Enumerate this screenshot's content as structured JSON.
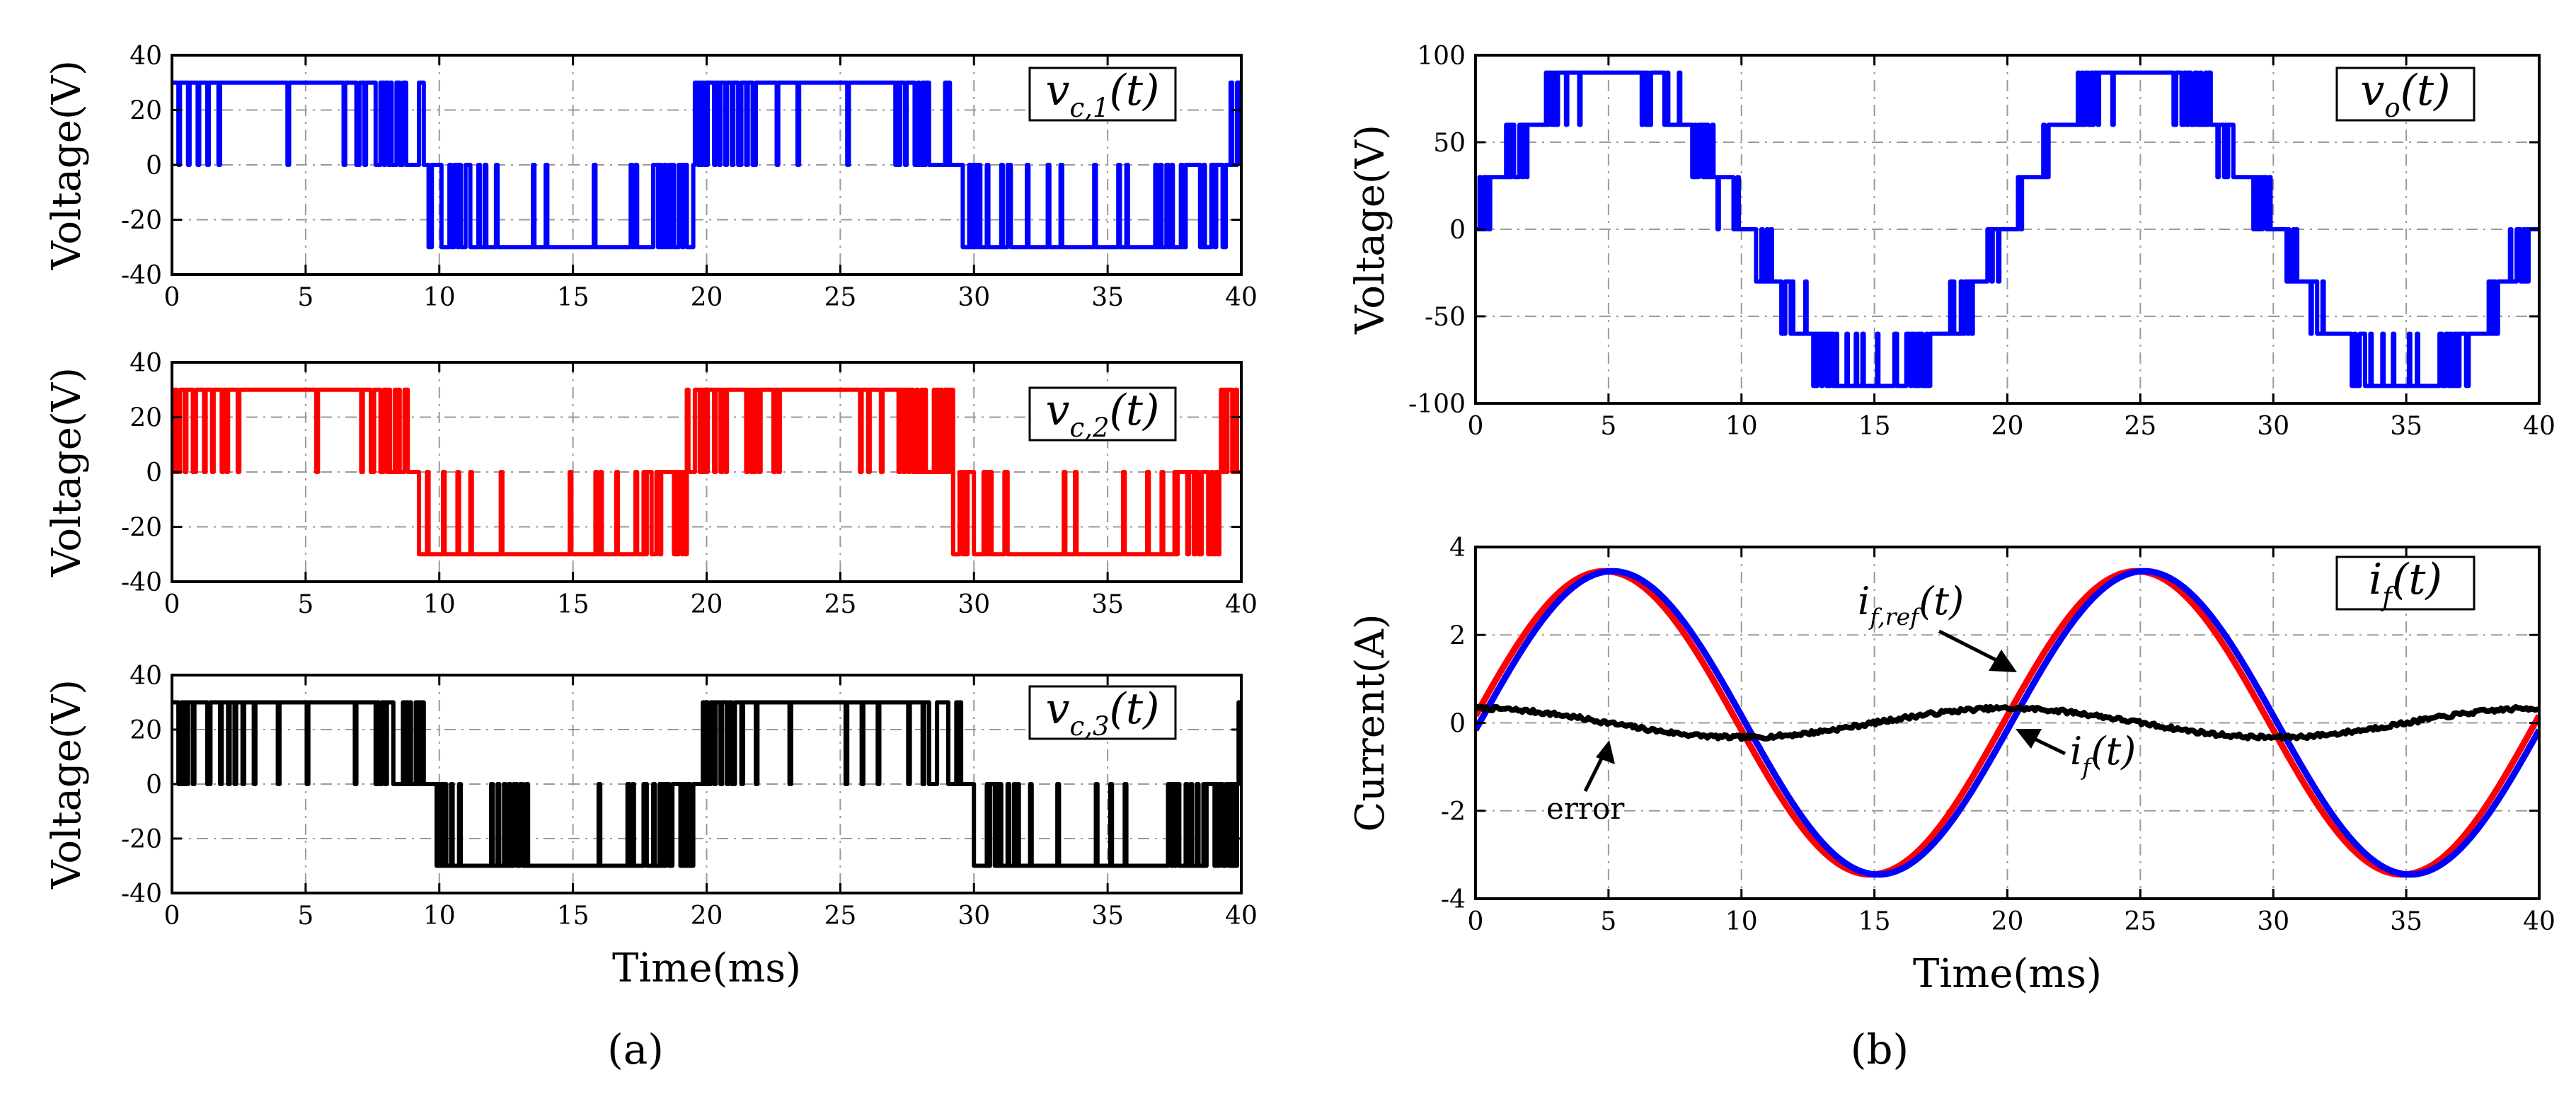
{
  "chart_data": [
    {
      "id": "p1",
      "type": "line",
      "panel": "a",
      "legend": "v_{c,1}(t)",
      "ylabel": "Voltage(V)",
      "xlabel": "",
      "xlim": [
        0,
        40
      ],
      "ylim": [
        -40,
        40
      ],
      "xticks": [
        0,
        5,
        10,
        15,
        20,
        25,
        30,
        35,
        40
      ],
      "yticks": [
        40,
        20,
        0,
        -20,
        -40
      ],
      "grid": true,
      "series": [
        {
          "color": "#0000FF",
          "kind": "pwm2",
          "amplitude": 30,
          "period_ms": 20,
          "phase_ms": 0,
          "offset_ms": 0.5
        }
      ]
    },
    {
      "id": "p2",
      "type": "line",
      "panel": "a",
      "legend": "v_{c,2}(t)",
      "ylabel": "Voltage(V)",
      "xlabel": "",
      "xlim": [
        0,
        40
      ],
      "ylim": [
        -40,
        40
      ],
      "xticks": [
        0,
        5,
        10,
        15,
        20,
        25,
        30,
        35,
        40
      ],
      "yticks": [
        40,
        20,
        0,
        -20,
        -40
      ],
      "grid": true,
      "series": [
        {
          "color": "#FF0000",
          "kind": "pwm2",
          "amplitude": 30,
          "period_ms": 20,
          "phase_ms": 0,
          "offset_ms": 0.8
        }
      ]
    },
    {
      "id": "p3",
      "type": "line",
      "panel": "a",
      "legend": "v_{c,3}(t)",
      "ylabel": "Voltage(V)",
      "xlabel": "Time(ms)",
      "xlim": [
        0,
        40
      ],
      "ylim": [
        -40,
        40
      ],
      "xticks": [
        0,
        5,
        10,
        15,
        20,
        25,
        30,
        35,
        40
      ],
      "yticks": [
        40,
        20,
        0,
        -20,
        -40
      ],
      "grid": true,
      "series": [
        {
          "color": "#000000",
          "kind": "pwm2",
          "amplitude": 30,
          "period_ms": 20,
          "phase_ms": 0,
          "offset_ms": 0.2
        }
      ]
    },
    {
      "id": "p4",
      "type": "line",
      "panel": "b",
      "legend": "v_o(t)",
      "ylabel": "Voltage(V)",
      "xlabel": "",
      "xlim": [
        0,
        40
      ],
      "ylim": [
        -100,
        100
      ],
      "xticks": [
        0,
        5,
        10,
        15,
        20,
        25,
        30,
        35,
        40
      ],
      "yticks": [
        100,
        50,
        0,
        -50,
        -100
      ],
      "grid": true,
      "series": [
        {
          "color": "#0000FF",
          "kind": "staircase",
          "step_v": 30,
          "amplitude": 90,
          "period_ms": 20
        }
      ]
    },
    {
      "id": "p5",
      "type": "line",
      "panel": "b",
      "legend": "i_f(t)",
      "ylabel": "Current(A)",
      "xlabel": "Time(ms)",
      "xlim": [
        0,
        40
      ],
      "ylim": [
        -4,
        4
      ],
      "xticks": [
        0,
        5,
        10,
        15,
        20,
        25,
        30,
        35,
        40
      ],
      "yticks": [
        4,
        2,
        0,
        -2,
        -4
      ],
      "grid": true,
      "series": [
        {
          "color": "#FF0000",
          "kind": "sine",
          "amplitude": 3.45,
          "period_ms": 20,
          "phase_ms": -0.15
        },
        {
          "color": "#0000FF",
          "kind": "sine",
          "amplitude": 3.45,
          "period_ms": 20,
          "phase_ms": 0.15
        },
        {
          "color": "#000000",
          "kind": "error",
          "amplitude": 0.33,
          "period_ms": 20
        }
      ],
      "annotations": [
        {
          "label": "i_{f,ref}(t)"
        },
        {
          "label": "i_f(t)"
        },
        {
          "label": "error"
        }
      ]
    }
  ],
  "subfigure_labels": [
    "(a)",
    "(b)"
  ]
}
